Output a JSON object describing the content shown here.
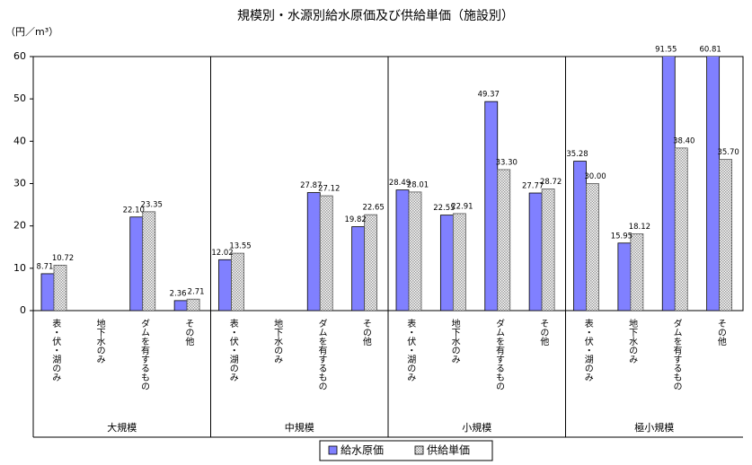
{
  "chart_data": {
    "type": "bar",
    "title": "規模別・水源別給水原価及び供給単価（施設別）",
    "y_label": "（円／m³）",
    "groups": [
      "大規模",
      "中規模",
      "小規模",
      "極小規模"
    ],
    "categories": [
      "表・伏・湖のみ",
      "地下水のみ",
      "ダムを有するもの",
      "その他",
      "表・伏・湖のみ",
      "地下水のみ",
      "ダムを有するもの",
      "その他",
      "表・伏・湖のみ",
      "地下水のみ",
      "ダムを有するもの",
      "その他",
      "表・伏・湖のみ",
      "地下水のみ",
      "ダムを有するもの",
      "その他"
    ],
    "series": [
      {
        "name": "給水原価",
        "color": "#8080ff",
        "values": [
          8.71,
          null,
          22.1,
          2.36,
          12.02,
          null,
          27.87,
          19.82,
          28.49,
          22.55,
          49.37,
          27.77,
          35.28,
          15.95,
          91.55,
          60.81
        ],
        "value_labels": [
          "8.71",
          null,
          "22.10",
          "2.36",
          "12.02",
          null,
          "27.87",
          "19.82",
          "28.49",
          "22.55",
          "49.37",
          "27.77",
          "35.28",
          "15.95",
          "91.55",
          "60.81"
        ]
      },
      {
        "name": "供給単価",
        "color": "#d8d8d8",
        "values": [
          10.72,
          null,
          23.35,
          2.71,
          13.55,
          null,
          27.12,
          22.65,
          28.01,
          22.91,
          33.3,
          28.72,
          30,
          18.12,
          38.4,
          35.7
        ],
        "value_labels": [
          "10.72",
          null,
          "23.35",
          "2.71",
          "13.55",
          null,
          "27.12",
          "22.65",
          "28.01",
          "22.91",
          "33.30",
          "28.72",
          "30.00",
          "18.12",
          "38.40",
          "35.70"
        ]
      }
    ],
    "ylim": [
      0,
      60
    ],
    "yticks": [
      0,
      10,
      20,
      30,
      40,
      50,
      60
    ],
    "grid": false,
    "legend": "bottom"
  }
}
